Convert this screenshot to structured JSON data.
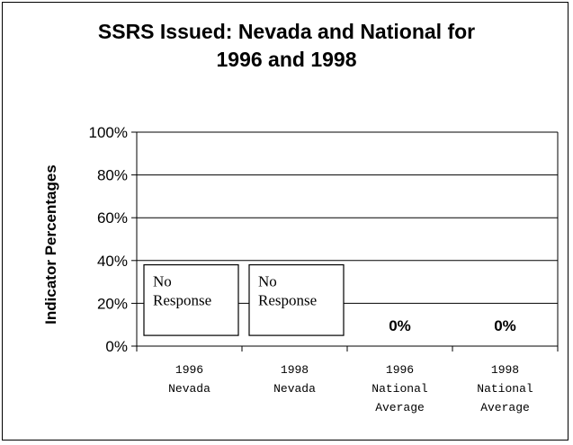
{
  "chart_data": {
    "type": "bar",
    "title_lines": [
      "SSRS Issued: Nevada and National for",
      "1996 and 1998"
    ],
    "ylabel": "Indicator Percentages",
    "xlabel": "",
    "ylim": [
      0,
      100
    ],
    "y_ticks": [
      0,
      20,
      40,
      60,
      80,
      100
    ],
    "y_tick_labels": [
      "0%",
      "20%",
      "40%",
      "60%",
      "80%",
      "100%"
    ],
    "grid": true,
    "legend": "none",
    "categories": [
      [
        "1996",
        "Nevada"
      ],
      [
        "1998",
        "Nevada"
      ],
      [
        "1996",
        "National",
        "Average"
      ],
      [
        "1998",
        "National",
        "Average"
      ]
    ],
    "values": [
      null,
      null,
      0,
      0
    ],
    "data_labels": [
      "",
      "",
      "0%",
      "0%"
    ],
    "no_response_boxes": [
      {
        "category_index": 0,
        "lines": [
          "No",
          "Response"
        ],
        "range": [
          5,
          38
        ]
      },
      {
        "category_index": 1,
        "lines": [
          "No",
          "Response"
        ],
        "range": [
          5,
          38
        ]
      }
    ]
  }
}
